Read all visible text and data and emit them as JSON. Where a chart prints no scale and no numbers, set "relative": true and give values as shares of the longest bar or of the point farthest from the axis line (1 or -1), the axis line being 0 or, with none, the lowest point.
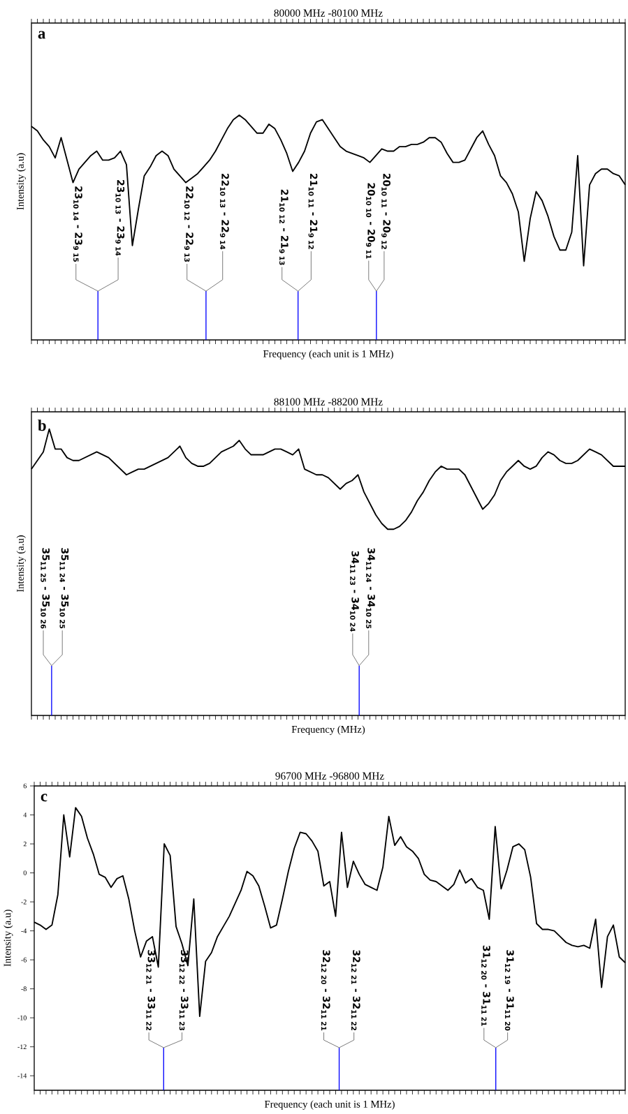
{
  "chart_data": [
    {
      "type": "line",
      "title": "80000 MHz -80100 MHz",
      "xlabel": "Frequency (each unit is 1 MHz)",
      "ylabel": "Intensity (a.u)",
      "relative": true,
      "color": "#000000",
      "tick_labels": false,
      "categories": [
        null,
        null,
        null,
        null,
        null,
        null,
        null,
        null,
        null,
        null,
        null,
        null,
        null,
        null,
        null,
        null,
        null,
        null,
        null,
        null,
        null,
        null,
        null,
        null,
        null,
        null,
        null,
        null,
        null,
        null,
        null,
        null,
        null,
        null,
        null,
        null,
        null,
        null,
        null,
        null,
        null,
        null,
        null,
        null,
        null,
        null,
        null,
        null,
        null,
        null,
        null,
        null,
        null,
        null,
        null,
        null,
        null,
        null,
        null,
        null,
        null,
        null,
        null,
        null,
        null,
        null,
        null,
        null,
        null,
        null,
        null,
        null,
        null,
        null,
        null,
        null,
        null,
        null,
        null,
        null,
        null,
        null,
        null,
        null,
        null,
        null,
        null,
        null,
        null,
        null,
        null,
        null,
        null,
        null,
        null,
        null,
        null,
        null,
        null,
        null,
        null
      ],
      "values": [
        0.95,
        0.93,
        0.89,
        0.86,
        0.81,
        0.9,
        0.8,
        0.7,
        0.76,
        0.79,
        0.82,
        0.84,
        0.8,
        0.8,
        0.81,
        0.84,
        0.78,
        0.42,
        0.58,
        0.73,
        0.77,
        0.82,
        0.84,
        0.82,
        0.76,
        0.73,
        0.7,
        0.72,
        0.74,
        0.77,
        0.8,
        0.84,
        0.89,
        0.94,
        0.98,
        1.0,
        0.98,
        0.95,
        0.92,
        0.92,
        0.96,
        0.94,
        0.89,
        0.83,
        0.75,
        0.79,
        0.84,
        0.92,
        0.97,
        0.98,
        0.94,
        0.9,
        0.86,
        0.84,
        0.83,
        0.82,
        0.81,
        0.79,
        0.82,
        0.85,
        0.84,
        0.84,
        0.86,
        0.86,
        0.87,
        0.87,
        0.88,
        0.9,
        0.9,
        0.88,
        0.83,
        0.79,
        0.79,
        0.8,
        0.85,
        0.9,
        0.93,
        0.87,
        0.82,
        0.73,
        0.7,
        0.65,
        0.57,
        0.35,
        0.54,
        0.66,
        0.62,
        0.55,
        0.46,
        0.4,
        0.4,
        0.48,
        0.82,
        0.33,
        0.69,
        0.74,
        0.76,
        0.76,
        0.74,
        0.73,
        0.69
      ],
      "annotations": [
        "a",
        "23$_{10 14}$ - 23$_{9 15}$",
        "23$_{10 13}$ - 23$_{9 14}$",
        "22$_{10 12}$ - 22$_{9 13}$",
        "22$_{10 13}$ - 22$_{9 14}$",
        "21$_{10 12}$ - 21$_{9 13}$",
        "21$_{10 11}$ - 21$_{9 12}$",
        "20$_{10 10}$ - 20$_{9 11}$",
        "20$_{10 11}$ - 20$_{9 12}$"
      ]
    },
    {
      "type": "line",
      "title": "88100 MHz -88200 MHz",
      "xlabel": "Frequency (MHz)",
      "ylabel": "Intensity (a.u)",
      "relative": true,
      "color": "#000000",
      "tick_labels": false,
      "categories": [
        null,
        null,
        null,
        null,
        null,
        null,
        null,
        null,
        null,
        null,
        null,
        null,
        null,
        null,
        null,
        null,
        null,
        null,
        null,
        null,
        null,
        null,
        null,
        null,
        null,
        null,
        null,
        null,
        null,
        null,
        null,
        null,
        null,
        null,
        null,
        null,
        null,
        null,
        null,
        null,
        null,
        null,
        null,
        null,
        null,
        null,
        null,
        null,
        null,
        null,
        null,
        null,
        null,
        null,
        null,
        null,
        null,
        null,
        null,
        null,
        null,
        null,
        null,
        null,
        null,
        null,
        null,
        null,
        null,
        null,
        null,
        null,
        null,
        null,
        null,
        null,
        null,
        null,
        null,
        null,
        null,
        null,
        null,
        null,
        null,
        null,
        null,
        null,
        null,
        null,
        null,
        null,
        null,
        null,
        null,
        null,
        null,
        null,
        null,
        null,
        null
      ],
      "values": [
        0.86,
        0.89,
        0.92,
        1.0,
        0.93,
        0.93,
        0.9,
        0.89,
        0.89,
        0.9,
        0.91,
        0.92,
        0.91,
        0.9,
        0.88,
        0.86,
        0.84,
        0.85,
        0.86,
        0.86,
        0.87,
        0.88,
        0.89,
        0.9,
        0.92,
        0.94,
        0.9,
        0.88,
        0.87,
        0.87,
        0.88,
        0.9,
        0.92,
        0.93,
        0.94,
        0.96,
        0.93,
        0.91,
        0.91,
        0.91,
        0.92,
        0.93,
        0.93,
        0.92,
        0.91,
        0.93,
        0.86,
        0.85,
        0.84,
        0.84,
        0.83,
        0.81,
        0.79,
        0.81,
        0.82,
        0.84,
        0.78,
        0.74,
        0.7,
        0.67,
        0.65,
        0.65,
        0.66,
        0.68,
        0.71,
        0.75,
        0.78,
        0.82,
        0.85,
        0.87,
        0.86,
        0.86,
        0.86,
        0.84,
        0.8,
        0.76,
        0.72,
        0.74,
        0.77,
        0.82,
        0.85,
        0.87,
        0.89,
        0.87,
        0.86,
        0.87,
        0.9,
        0.92,
        0.91,
        0.89,
        0.88,
        0.88,
        0.89,
        0.91,
        0.93,
        0.92,
        0.91,
        0.89,
        0.87,
        0.87,
        0.87
      ],
      "annotations": [
        "b",
        "35$_{11 25}$ - 35$_{10 26}$",
        "35$_{11 24}$ - 35$_{10 25}$",
        "34$_{11 23}$ - 34$_{10 24}$",
        "34$_{11 24}$ - 34$_{10 25}$"
      ]
    },
    {
      "type": "line",
      "title": "96700 MHz -96800 MHz",
      "xlabel": "Frequency (each unit is 1 MHz)",
      "ylabel": "Intensity (a.u)",
      "color": "#000000",
      "tick_labels": "y",
      "ylim": [
        -15,
        6
      ],
      "yticks": [
        -14,
        -12,
        -10,
        -8,
        -6,
        -4,
        -2,
        0,
        2,
        4,
        6
      ],
      "categories": [
        null,
        null,
        null,
        null,
        null,
        null,
        null,
        null,
        null,
        null,
        null,
        null,
        null,
        null,
        null,
        null,
        null,
        null,
        null,
        null,
        null,
        null,
        null,
        null,
        null,
        null,
        null,
        null,
        null,
        null,
        null,
        null,
        null,
        null,
        null,
        null,
        null,
        null,
        null,
        null,
        null,
        null,
        null,
        null,
        null,
        null,
        null,
        null,
        null,
        null,
        null,
        null,
        null,
        null,
        null,
        null,
        null,
        null,
        null,
        null,
        null,
        null,
        null,
        null,
        null,
        null,
        null,
        null,
        null,
        null,
        null,
        null,
        null,
        null,
        null,
        null,
        null,
        null,
        null,
        null,
        null,
        null,
        null,
        null,
        null,
        null,
        null,
        null,
        null,
        null,
        null,
        null,
        null,
        null,
        null,
        null,
        null,
        null,
        null,
        null,
        null
      ],
      "values": [
        -3.4,
        -3.6,
        -3.9,
        -3.6,
        -1.5,
        4.0,
        1.1,
        4.5,
        3.9,
        2.4,
        1.3,
        -0.1,
        -0.3,
        -1.0,
        -0.4,
        -0.2,
        -1.8,
        -4.0,
        -5.8,
        -4.7,
        -4.4,
        -6.5,
        2.0,
        1.2,
        -3.7,
        -4.9,
        -6.4,
        -1.8,
        -9.9,
        -6.1,
        -5.5,
        -4.4,
        -3.7,
        -3.0,
        -2.1,
        -1.2,
        0.1,
        -0.2,
        -0.9,
        -2.3,
        -3.8,
        -3.6,
        -1.8,
        0.1,
        1.7,
        2.8,
        2.7,
        2.2,
        1.5,
        -0.9,
        -0.6,
        -3.0,
        2.8,
        -1.0,
        0.8,
        -0.1,
        -0.8,
        -1.0,
        -1.2,
        0.4,
        3.9,
        1.9,
        2.5,
        1.8,
        1.5,
        1.0,
        -0.1,
        -0.5,
        -0.6,
        -0.9,
        -1.2,
        -0.8,
        0.2,
        -0.7,
        -0.4,
        -1.0,
        -1.2,
        -3.2,
        3.2,
        -1.1,
        0.2,
        1.8,
        2.0,
        1.6,
        -0.3,
        -3.5,
        -3.9,
        -3.9,
        -4.0,
        -4.4,
        -4.8,
        -5.0,
        -5.1,
        -5.0,
        -5.2,
        -3.2,
        -7.9,
        -4.4,
        -3.6,
        -5.8,
        -6.2
      ],
      "annotations": [
        "c",
        "33$_{12 21}$ - 33$_{11 22}$",
        "33$_{12 22}$ - 33$_{11 23}$",
        "32$_{12 20}$ - 32$_{11 21}$",
        "32$_{12 21}$ - 32$_{11 22}$",
        "31$_{12 20}$ - 31$_{11 21}$",
        "31$_{12 19}$ - 31$_{11 20}$"
      ]
    }
  ]
}
